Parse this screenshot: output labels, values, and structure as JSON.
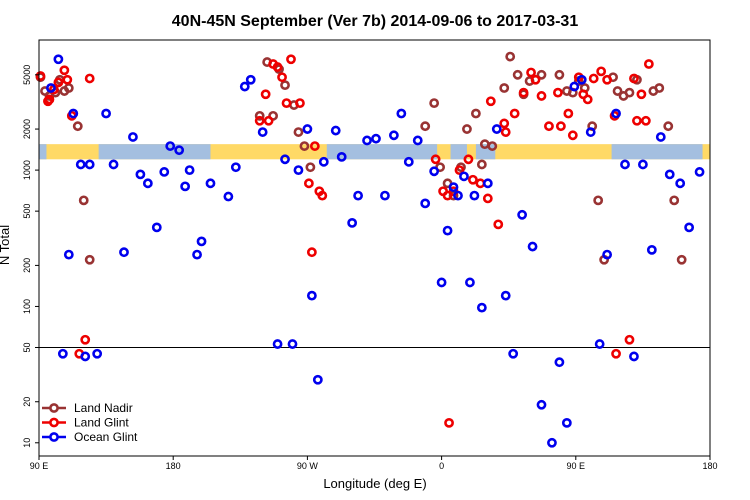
{
  "chart_data": {
    "type": "scatter",
    "title": "40N-45N September (Ver 7b)   2014-09-06 to 2017-03-31",
    "xlabel": "Longitude (deg E)",
    "ylabel": "N Total",
    "x_scale": "linear",
    "y_scale": "log",
    "xlim": [
      90,
      540
    ],
    "ylim": [
      8,
      9000
    ],
    "x_ticks": [
      {
        "value": 90,
        "label": "90 E"
      },
      {
        "value": 180,
        "label": "180"
      },
      {
        "value": 270,
        "label": "90 W"
      },
      {
        "value": 360,
        "label": "0"
      },
      {
        "value": 450,
        "label": "90 E"
      },
      {
        "value": 540,
        "label": "180"
      }
    ],
    "y_ticks": [
      10,
      20,
      50,
      100,
      200,
      500,
      1000,
      2000,
      5000
    ],
    "reference_line": 50,
    "legend_position": "bottom-left",
    "band": {
      "y_range": [
        1200,
        1550
      ],
      "colors": {
        "yellow": "#FFD966",
        "blue": "#A4BFE0"
      },
      "blue_segments": [
        [
          90,
          95
        ],
        [
          130,
          205
        ],
        [
          283,
          357
        ],
        [
          366,
          377
        ],
        [
          383,
          396
        ],
        [
          474,
          535
        ]
      ]
    },
    "series": [
      {
        "name": "Land Nadir",
        "color": "#993333",
        "x": [
          91,
          94,
          97,
          101,
          104,
          107,
          110,
          116,
          120,
          124,
          238,
          243,
          247,
          251,
          255,
          261,
          264,
          268,
          272,
          349,
          355,
          359,
          364,
          368,
          373,
          377,
          383,
          387,
          389,
          394,
          402,
          406,
          411,
          415,
          419,
          427,
          439,
          444,
          448,
          452,
          456,
          461,
          465,
          469,
          475,
          478,
          482,
          486,
          491,
          502,
          506,
          512,
          516,
          521
        ],
        "y": [
          4800,
          3800,
          3500,
          3700,
          4600,
          3800,
          4000,
          2100,
          600,
          220,
          2500,
          6200,
          2500,
          5500,
          4200,
          3000,
          1900,
          1500,
          1050,
          2100,
          3100,
          1050,
          800,
          650,
          1050,
          2000,
          2600,
          1100,
          1550,
          1500,
          4000,
          6800,
          5000,
          3600,
          4500,
          5000,
          5000,
          3800,
          3700,
          4500,
          4000,
          2100,
          600,
          220,
          4800,
          3800,
          3500,
          3700,
          4600,
          3800,
          4000,
          2100,
          600,
          220
        ]
      },
      {
        "name": "Land Glint",
        "color": "#EE0000",
        "x": [
          91,
          96,
          97,
          100,
          103,
          107,
          109,
          112,
          117,
          121,
          124,
          238,
          242,
          244,
          247,
          250,
          253,
          256,
          259,
          265,
          271,
          273,
          275,
          278,
          280,
          356,
          361,
          364,
          365,
          368,
          372,
          378,
          381,
          386,
          391,
          393,
          398,
          402,
          403,
          409,
          415,
          420,
          423,
          427,
          432,
          438,
          440,
          445,
          448,
          452,
          455,
          458,
          462,
          467,
          471,
          476,
          477,
          486,
          489,
          491,
          494,
          497,
          499
        ],
        "y": [
          4900,
          3200,
          3300,
          3900,
          4400,
          5400,
          4600,
          2500,
          45,
          57,
          4700,
          2300,
          3600,
          2300,
          6000,
          5700,
          4800,
          3100,
          6500,
          3100,
          800,
          250,
          1500,
          700,
          650,
          1200,
          700,
          650,
          14,
          700,
          1000,
          1200,
          850,
          800,
          620,
          3200,
          400,
          2200,
          1900,
          2600,
          3700,
          5200,
          4600,
          3500,
          2100,
          3700,
          2100,
          2600,
          1800,
          4800,
          3600,
          3300,
          4700,
          5300,
          4600,
          2500,
          45,
          57,
          4700,
          2300,
          3600,
          2300,
          6000
        ]
      },
      {
        "name": "Ocean Glint",
        "color": "#0000EE",
        "x": [
          98,
          103,
          106,
          110,
          113,
          118,
          121,
          124,
          129,
          135,
          140,
          147,
          153,
          158,
          163,
          169,
          174,
          178,
          184,
          188,
          191,
          196,
          199,
          205,
          217,
          222,
          228,
          232,
          240,
          250,
          255,
          260,
          264,
          270,
          273,
          277,
          281,
          289,
          293,
          300,
          304,
          310,
          316,
          322,
          328,
          333,
          338,
          344,
          349,
          355,
          360,
          364,
          368,
          371,
          375,
          379,
          382,
          387,
          391,
          397,
          403,
          408,
          414,
          421,
          427,
          434,
          439,
          444,
          449,
          454,
          460,
          466,
          471,
          477,
          483,
          489,
          495,
          501,
          507,
          513,
          520,
          526,
          533
        ],
        "y": [
          4000,
          6500,
          45,
          240,
          2600,
          1100,
          43,
          1100,
          45,
          2600,
          1100,
          250,
          1750,
          930,
          800,
          380,
          970,
          1500,
          1400,
          760,
          1000,
          240,
          300,
          800,
          640,
          1050,
          4100,
          4600,
          1900,
          53,
          1200,
          53,
          1000,
          2000,
          120,
          29,
          1150,
          1950,
          1250,
          410,
          650,
          1650,
          1700,
          650,
          1800,
          2600,
          1150,
          1650,
          570,
          980,
          150,
          360,
          750,
          650,
          900,
          150,
          650,
          98,
          800,
          2000,
          120,
          45,
          470,
          275,
          19,
          10,
          39,
          14,
          4100,
          4600,
          1900,
          53,
          240,
          2600,
          1100,
          43,
          1100,
          260,
          1750,
          930,
          800,
          380,
          970
        ]
      }
    ]
  }
}
